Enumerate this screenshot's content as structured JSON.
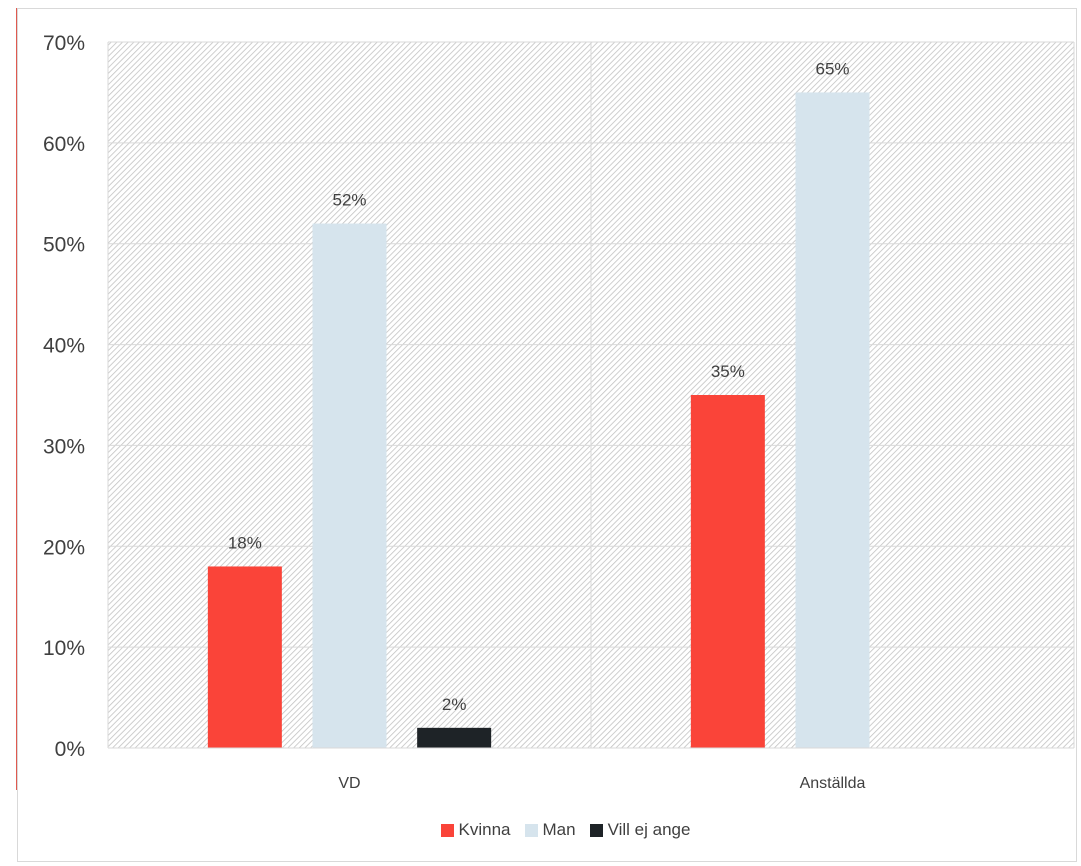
{
  "chart_data": {
    "type": "bar",
    "categories": [
      "VD",
      "Anställda"
    ],
    "series": [
      {
        "name": "Kvinna",
        "color": "#fa4439",
        "values": [
          18,
          35
        ],
        "labels": [
          "18%",
          "35%"
        ]
      },
      {
        "name": "Man",
        "color": "#d6e4ed",
        "values": [
          52,
          65
        ],
        "labels": [
          "52%",
          "65%"
        ]
      },
      {
        "name": "Vill ej ange",
        "color": "#1e2327",
        "values": [
          2,
          null
        ],
        "labels": [
          "2%",
          ""
        ]
      }
    ],
    "y_ticks": [
      "0%",
      "10%",
      "20%",
      "30%",
      "40%",
      "50%",
      "60%",
      "70%"
    ],
    "ylim": [
      0,
      70
    ],
    "title": "",
    "xlabel": "",
    "ylabel": "",
    "grid": true,
    "legend_position": "bottom",
    "background_pattern": "diagonal-hatch",
    "colors": {
      "gridline": "#d9d9d9",
      "hatch": "#c8c8c8",
      "text": "#404040"
    }
  }
}
